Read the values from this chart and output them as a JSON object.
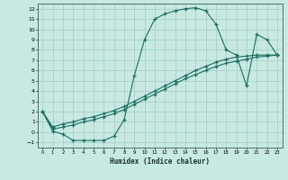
{
  "bg_color": "#c8e8e2",
  "grid_color": "#a0ccc6",
  "line_color": "#1a6e60",
  "xlabel": "Humidex (Indice chaleur)",
  "xlim": [
    -0.5,
    23.5
  ],
  "ylim": [
    -1.5,
    12.5
  ],
  "xticks": [
    0,
    1,
    2,
    3,
    4,
    5,
    6,
    7,
    8,
    9,
    10,
    11,
    12,
    13,
    14,
    15,
    16,
    17,
    18,
    19,
    20,
    21,
    22,
    23
  ],
  "yticks": [
    -1,
    0,
    1,
    2,
    3,
    4,
    5,
    6,
    7,
    8,
    9,
    10,
    11,
    12
  ],
  "curve_wiggly_x": [
    0,
    1,
    2,
    3,
    4,
    5,
    6,
    7,
    8,
    9,
    10,
    11,
    12,
    13,
    14,
    15,
    16,
    17,
    18,
    19,
    20,
    21,
    22,
    23
  ],
  "curve_wiggly_y": [
    2.0,
    0.1,
    -0.2,
    -0.8,
    -0.8,
    -0.8,
    -0.8,
    -0.4,
    1.2,
    5.5,
    9.0,
    11.0,
    11.5,
    11.8,
    12.0,
    12.1,
    11.8,
    10.5,
    8.0,
    7.5,
    4.5,
    9.5,
    9.0,
    7.5
  ],
  "curve_diag1_x": [
    0,
    1,
    2,
    3,
    4,
    5,
    6,
    7,
    8,
    9,
    10,
    11,
    12,
    13,
    14,
    15,
    16,
    17,
    18,
    19,
    20,
    21,
    22,
    23
  ],
  "curve_diag1_y": [
    2.0,
    0.5,
    0.8,
    1.0,
    1.3,
    1.5,
    1.8,
    2.1,
    2.5,
    3.0,
    3.5,
    4.0,
    4.5,
    5.0,
    5.5,
    6.0,
    6.4,
    6.8,
    7.1,
    7.3,
    7.4,
    7.5,
    7.5,
    7.5
  ],
  "curve_diag2_x": [
    0,
    1,
    2,
    3,
    4,
    5,
    6,
    7,
    8,
    9,
    10,
    11,
    12,
    13,
    14,
    15,
    16,
    17,
    18,
    19,
    20,
    21,
    22,
    23
  ],
  "curve_diag2_y": [
    2.0,
    0.3,
    0.5,
    0.7,
    1.0,
    1.2,
    1.5,
    1.8,
    2.2,
    2.7,
    3.2,
    3.7,
    4.2,
    4.7,
    5.2,
    5.6,
    6.0,
    6.4,
    6.7,
    6.9,
    7.1,
    7.3,
    7.4,
    7.5
  ]
}
